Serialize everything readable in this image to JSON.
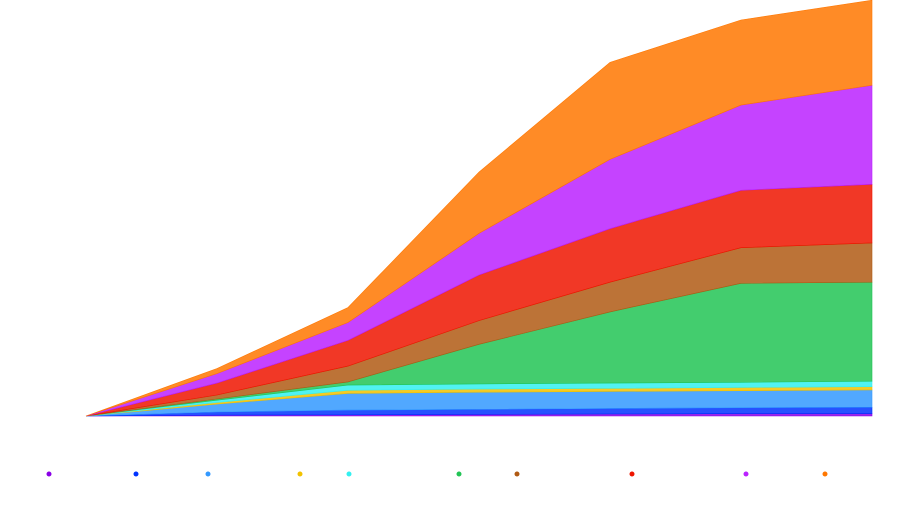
{
  "chart_data": {
    "type": "area",
    "stacked": true,
    "title": "",
    "xlabel": "",
    "ylabel": "",
    "grid": false,
    "legend_position": "bottom",
    "x": [
      0,
      1,
      2,
      3,
      4,
      5,
      6
    ],
    "ylim": [
      0,
      100
    ],
    "series": [
      {
        "name": "",
        "color": "#8a00e6",
        "values": [
          0,
          0.2,
          0.3,
          0.4,
          0.5,
          0.6,
          0.6
        ]
      },
      {
        "name": "",
        "color": "#0033ff",
        "values": [
          0,
          0.8,
          1.2,
          1.3,
          1.4,
          1.5,
          1.6
        ]
      },
      {
        "name": "",
        "color": "#3399ff",
        "values": [
          0,
          2.0,
          4.2,
          4.3,
          4.3,
          4.3,
          4.4
        ]
      },
      {
        "name": "",
        "color": "#f2c200",
        "values": [
          0,
          0.4,
          0.8,
          0.8,
          0.8,
          0.8,
          0.8
        ]
      },
      {
        "name": "",
        "color": "#33f0f0",
        "values": [
          0,
          0.6,
          1.3,
          1.3,
          1.3,
          1.3,
          1.4
        ]
      },
      {
        "name": "",
        "color": "#22c455",
        "values": [
          0,
          0.3,
          0.8,
          10,
          18,
          25,
          25
        ]
      },
      {
        "name": "",
        "color": "#b05a14",
        "values": [
          0,
          1.0,
          4.0,
          6.0,
          7.5,
          9.0,
          9.9
        ]
      },
      {
        "name": "",
        "color": "#ee1500",
        "values": [
          0,
          3.0,
          6.5,
          11.5,
          13.5,
          14.5,
          14.8
        ]
      },
      {
        "name": "",
        "color": "#bb22ff",
        "values": [
          0,
          2.4,
          4.5,
          10.5,
          17.5,
          21.5,
          25.0
        ]
      },
      {
        "name": "",
        "color": "#ff7700",
        "values": [
          0,
          1.3,
          3.8,
          15.5,
          24.5,
          21.5,
          21.5
        ]
      }
    ]
  }
}
